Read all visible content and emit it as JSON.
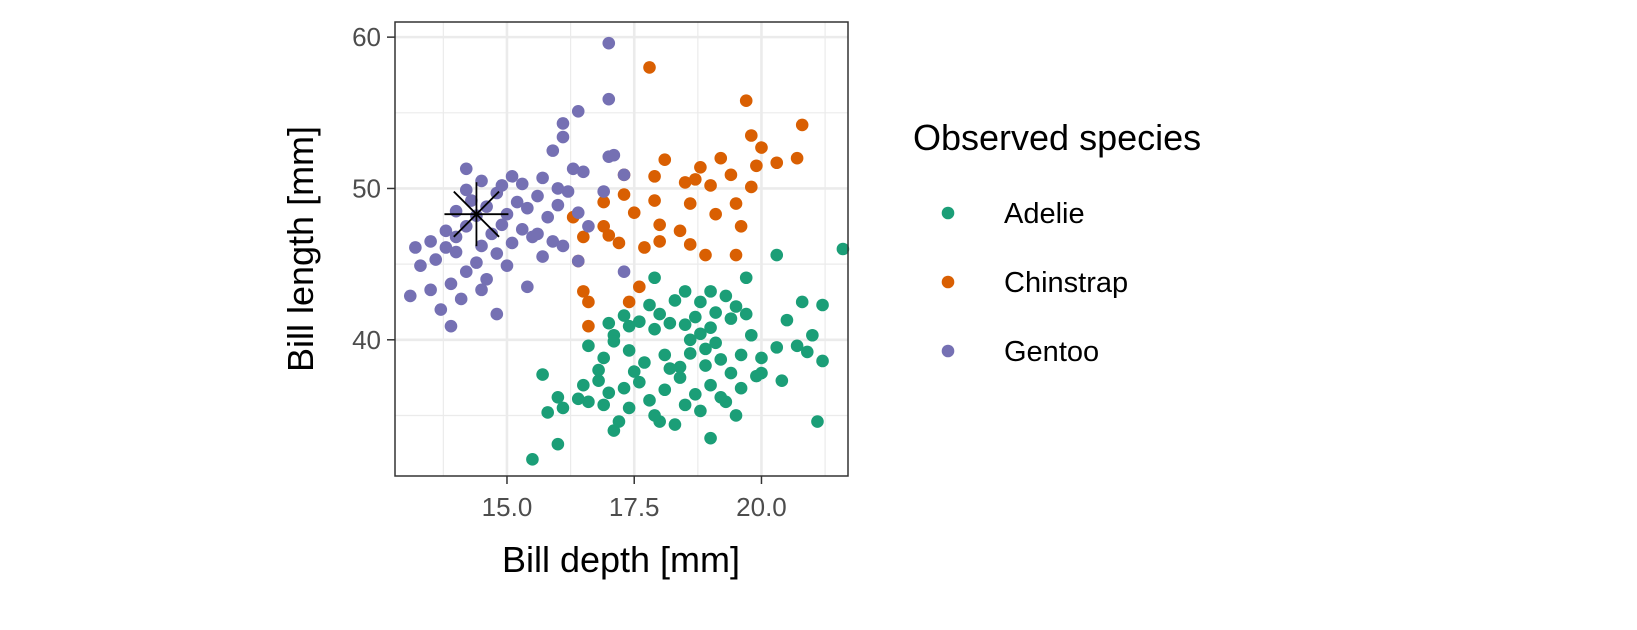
{
  "chart_data": {
    "type": "scatter",
    "title": "",
    "xlabel": "Bill depth [mm]",
    "ylabel": "Bill length [mm]",
    "xlim": [
      12.8,
      21.7
    ],
    "ylim": [
      31.0,
      61.0
    ],
    "x_ticks": [
      15.0,
      17.5,
      20.0
    ],
    "x_tick_labels": [
      "15.0",
      "17.5",
      "20.0"
    ],
    "x_minor_ticks": [
      13.75,
      16.25,
      18.75,
      21.25
    ],
    "y_ticks": [
      40,
      50,
      60
    ],
    "y_tick_labels": [
      "40",
      "50",
      "60"
    ],
    "y_minor_ticks": [
      35,
      45,
      55
    ],
    "grid": true,
    "legend": {
      "title": "Observed species",
      "position": "right",
      "entries": [
        "Adelie",
        "Chinstrap",
        "Gentoo"
      ]
    },
    "series": [
      {
        "name": "Adelie",
        "color": "#1b9e77",
        "points": [
          [
            15.5,
            32.1
          ],
          [
            16.0,
            33.1
          ],
          [
            17.1,
            34.0
          ],
          [
            17.2,
            34.6
          ],
          [
            18.0,
            34.6
          ],
          [
            18.3,
            34.4
          ],
          [
            19.0,
            33.5
          ],
          [
            21.1,
            34.6
          ],
          [
            15.8,
            35.2
          ],
          [
            16.1,
            35.5
          ],
          [
            16.6,
            35.9
          ],
          [
            16.9,
            35.7
          ],
          [
            17.4,
            35.5
          ],
          [
            17.9,
            35.0
          ],
          [
            18.5,
            35.7
          ],
          [
            18.8,
            35.3
          ],
          [
            19.3,
            35.9
          ],
          [
            19.5,
            35.0
          ],
          [
            15.7,
            37.7
          ],
          [
            16.0,
            36.2
          ],
          [
            16.5,
            37.0
          ],
          [
            16.8,
            37.3
          ],
          [
            17.0,
            36.5
          ],
          [
            17.3,
            36.8
          ],
          [
            17.6,
            37.2
          ],
          [
            17.8,
            36.0
          ],
          [
            18.1,
            36.7
          ],
          [
            18.4,
            37.5
          ],
          [
            18.7,
            36.4
          ],
          [
            19.0,
            37.0
          ],
          [
            19.2,
            36.2
          ],
          [
            19.6,
            36.8
          ],
          [
            20.0,
            37.8
          ],
          [
            20.4,
            37.3
          ],
          [
            20.9,
            39.2
          ],
          [
            21.2,
            38.6
          ],
          [
            16.6,
            39.6
          ],
          [
            16.9,
            38.8
          ],
          [
            17.1,
            40.3
          ],
          [
            17.4,
            39.3
          ],
          [
            17.7,
            38.5
          ],
          [
            17.9,
            40.7
          ],
          [
            18.1,
            39.0
          ],
          [
            18.2,
            41.1
          ],
          [
            18.4,
            38.2
          ],
          [
            18.6,
            40.0
          ],
          [
            18.7,
            41.5
          ],
          [
            18.9,
            39.4
          ],
          [
            19.0,
            40.8
          ],
          [
            19.2,
            38.7
          ],
          [
            19.4,
            41.4
          ],
          [
            19.6,
            39.0
          ],
          [
            19.8,
            40.3
          ],
          [
            20.0,
            38.8
          ],
          [
            20.3,
            39.5
          ],
          [
            20.7,
            39.6
          ],
          [
            21.0,
            40.3
          ],
          [
            17.0,
            41.1
          ],
          [
            17.3,
            41.6
          ],
          [
            17.6,
            41.2
          ],
          [
            17.8,
            42.3
          ],
          [
            18.0,
            41.7
          ],
          [
            18.3,
            42.6
          ],
          [
            18.5,
            41.0
          ],
          [
            18.8,
            42.5
          ],
          [
            19.1,
            41.8
          ],
          [
            19.3,
            42.9
          ],
          [
            19.5,
            42.2
          ],
          [
            19.7,
            41.7
          ],
          [
            20.5,
            41.3
          ],
          [
            20.8,
            42.5
          ],
          [
            21.2,
            42.3
          ],
          [
            17.9,
            44.1
          ],
          [
            18.5,
            43.2
          ],
          [
            19.0,
            43.2
          ],
          [
            19.7,
            44.1
          ],
          [
            20.3,
            45.6
          ],
          [
            21.6,
            46.0
          ],
          [
            16.8,
            38.0
          ],
          [
            17.5,
            37.9
          ],
          [
            18.2,
            38.1
          ],
          [
            18.9,
            38.3
          ],
          [
            19.4,
            37.8
          ],
          [
            16.4,
            36.1
          ],
          [
            17.1,
            39.9
          ],
          [
            18.6,
            39.1
          ],
          [
            19.9,
            37.6
          ],
          [
            17.4,
            40.9
          ],
          [
            18.8,
            40.4
          ],
          [
            19.1,
            39.8
          ]
        ]
      },
      {
        "name": "Chinstrap",
        "color": "#d95f02",
        "points": [
          [
            16.6,
            40.9
          ],
          [
            16.6,
            42.5
          ],
          [
            17.4,
            42.5
          ],
          [
            17.6,
            43.5
          ],
          [
            16.5,
            43.2
          ],
          [
            16.4,
            45.2
          ],
          [
            16.5,
            46.8
          ],
          [
            16.9,
            47.5
          ],
          [
            16.3,
            48.1
          ],
          [
            17.2,
            46.4
          ],
          [
            17.7,
            46.1
          ],
          [
            18.0,
            46.5
          ],
          [
            18.6,
            46.3
          ],
          [
            18.9,
            45.6
          ],
          [
            19.5,
            45.6
          ],
          [
            18.4,
            47.2
          ],
          [
            17.5,
            48.4
          ],
          [
            17.3,
            49.6
          ],
          [
            17.3,
            50.9
          ],
          [
            17.9,
            50.8
          ],
          [
            18.1,
            51.9
          ],
          [
            18.5,
            50.4
          ],
          [
            18.8,
            51.4
          ],
          [
            19.0,
            50.2
          ],
          [
            19.2,
            52.0
          ],
          [
            19.4,
            50.9
          ],
          [
            19.5,
            49.0
          ],
          [
            19.8,
            50.1
          ],
          [
            19.9,
            51.5
          ],
          [
            20.0,
            52.7
          ],
          [
            19.8,
            53.5
          ],
          [
            20.3,
            51.7
          ],
          [
            20.7,
            52.0
          ],
          [
            20.8,
            54.2
          ],
          [
            19.7,
            55.8
          ],
          [
            17.8,
            58.0
          ],
          [
            17.9,
            49.2
          ],
          [
            18.6,
            49.0
          ],
          [
            19.1,
            48.3
          ],
          [
            19.6,
            47.5
          ],
          [
            18.0,
            47.6
          ],
          [
            18.7,
            50.6
          ],
          [
            17.0,
            46.9
          ],
          [
            16.9,
            49.1
          ]
        ]
      },
      {
        "name": "Gentoo",
        "color": "#7570b3",
        "points": [
          [
            13.1,
            42.9
          ],
          [
            13.5,
            43.3
          ],
          [
            13.7,
            42.0
          ],
          [
            13.9,
            40.9
          ],
          [
            13.9,
            43.7
          ],
          [
            14.1,
            42.7
          ],
          [
            14.5,
            43.3
          ],
          [
            14.8,
            41.7
          ],
          [
            13.3,
            44.9
          ],
          [
            13.6,
            45.3
          ],
          [
            13.8,
            46.1
          ],
          [
            14.0,
            45.8
          ],
          [
            14.2,
            44.5
          ],
          [
            14.4,
            45.1
          ],
          [
            14.6,
            44.0
          ],
          [
            14.8,
            45.7
          ],
          [
            15.0,
            44.9
          ],
          [
            13.2,
            46.1
          ],
          [
            13.5,
            46.5
          ],
          [
            13.8,
            47.2
          ],
          [
            14.0,
            46.8
          ],
          [
            14.2,
            47.5
          ],
          [
            14.4,
            48.2
          ],
          [
            14.5,
            46.2
          ],
          [
            14.7,
            47.0
          ],
          [
            14.9,
            47.6
          ],
          [
            15.1,
            46.4
          ],
          [
            15.3,
            47.3
          ],
          [
            15.5,
            46.8
          ],
          [
            15.7,
            45.5
          ],
          [
            15.9,
            46.5
          ],
          [
            16.1,
            46.2
          ],
          [
            16.4,
            45.2
          ],
          [
            15.4,
            43.5
          ],
          [
            14.0,
            48.5
          ],
          [
            14.3,
            49.2
          ],
          [
            14.6,
            48.8
          ],
          [
            14.8,
            49.7
          ],
          [
            15.0,
            48.3
          ],
          [
            15.2,
            49.1
          ],
          [
            15.4,
            48.7
          ],
          [
            15.6,
            49.5
          ],
          [
            15.8,
            48.1
          ],
          [
            16.0,
            48.9
          ],
          [
            16.2,
            49.8
          ],
          [
            16.4,
            48.4
          ],
          [
            14.2,
            49.9
          ],
          [
            14.5,
            50.5
          ],
          [
            14.9,
            50.2
          ],
          [
            15.1,
            50.8
          ],
          [
            15.3,
            50.3
          ],
          [
            15.7,
            50.7
          ],
          [
            16.0,
            50.0
          ],
          [
            16.3,
            51.3
          ],
          [
            16.5,
            51.1
          ],
          [
            16.9,
            49.8
          ],
          [
            17.3,
            50.9
          ],
          [
            14.2,
            51.3
          ],
          [
            15.9,
            52.5
          ],
          [
            16.1,
            53.4
          ],
          [
            16.1,
            54.3
          ],
          [
            16.4,
            55.1
          ],
          [
            17.0,
            52.1
          ],
          [
            17.1,
            52.2
          ],
          [
            17.0,
            55.9
          ],
          [
            17.0,
            59.6
          ],
          [
            17.3,
            44.5
          ],
          [
            16.6,
            47.5
          ],
          [
            15.6,
            47.0
          ]
        ]
      }
    ],
    "annotation": {
      "marker": "asterisk",
      "x": 14.4,
      "y": 48.3,
      "color": "#000000"
    }
  }
}
